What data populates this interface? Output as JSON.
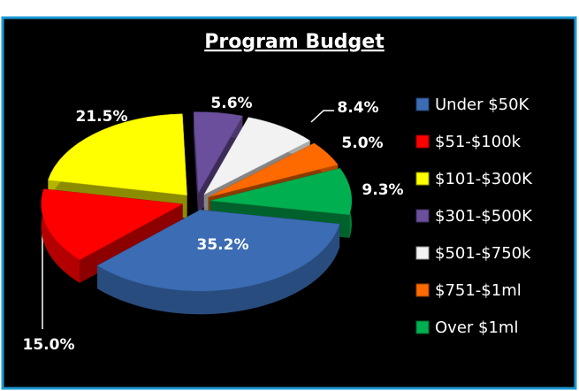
{
  "chart_data": {
    "type": "pie",
    "title": "Program Budget",
    "categories": [
      "Under $50K",
      "$51-$100k",
      "$101-$300K",
      "$301-$500K",
      "$501-$750k",
      "$751-$1ml",
      "Over $1ml"
    ],
    "values": [
      35.2,
      15.0,
      21.5,
      5.6,
      8.4,
      5.0,
      9.3
    ],
    "value_labels": [
      "35.2%",
      "15.0%",
      "21.5%",
      "5.6%",
      "8.4%",
      "5.0%",
      "9.3%"
    ],
    "colors": [
      "#3b6cb4",
      "#ff0000",
      "#ffff00",
      "#6b4f9c",
      "#f2f2f2",
      "#ff6a00",
      "#00b050"
    ],
    "legend": "right"
  }
}
